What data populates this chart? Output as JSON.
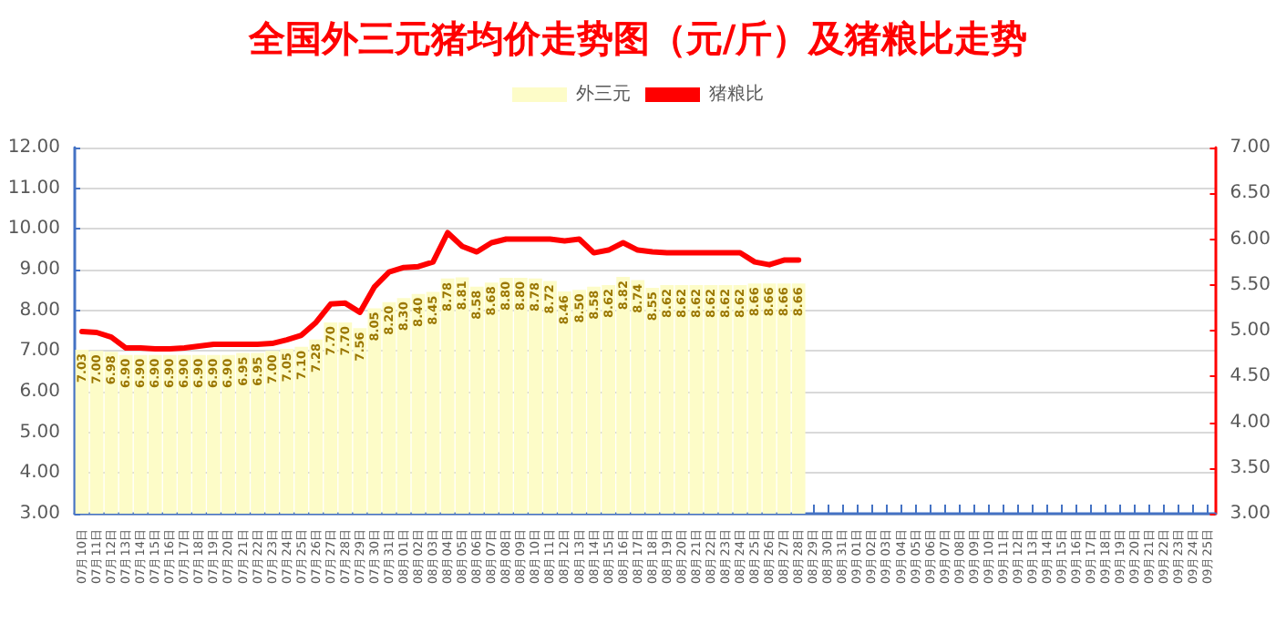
{
  "chart_data": {
    "type": "bar",
    "title": "全国外三元猪均价走势图（元/斤）及猪粮比走势",
    "categories": [
      "07月10日",
      "07月11日",
      "07月12日",
      "07月13日",
      "07月14日",
      "07月15日",
      "07月16日",
      "07月17日",
      "07月18日",
      "07月19日",
      "07月20日",
      "07月21日",
      "07月22日",
      "07月23日",
      "07月24日",
      "07月25日",
      "07月26日",
      "07月27日",
      "07月28日",
      "07月29日",
      "07月30日",
      "07月31日",
      "08月01日",
      "08月02日",
      "08月03日",
      "08月04日",
      "08月05日",
      "08月06日",
      "08月07日",
      "08月08日",
      "08月09日",
      "08月10日",
      "08月11日",
      "08月12日",
      "08月13日",
      "08月14日",
      "08月15日",
      "08月16日",
      "08月17日",
      "08月18日",
      "08月19日",
      "08月20日",
      "08月21日",
      "08月22日",
      "08月23日",
      "08月24日",
      "08月25日",
      "08月26日",
      "08月27日",
      "08月28日",
      "08月29日",
      "08月30日",
      "08月31日",
      "09月01日",
      "09月02日",
      "09月03日",
      "09月04日",
      "09月05日",
      "09月06日",
      "09月07日",
      "09月08日",
      "09月09日",
      "09月10日",
      "09月11日",
      "09月12日",
      "09月13日",
      "09月14日",
      "09月15日",
      "09月16日",
      "09月17日",
      "09月18日",
      "09月19日",
      "09月20日",
      "09月21日",
      "09月22日",
      "09月23日",
      "09月24日",
      "09月25日"
    ],
    "series": [
      {
        "name": "外三元",
        "axis": "y",
        "color": "#fdfcc8",
        "values": [
          7.03,
          7.0,
          6.98,
          6.9,
          6.9,
          6.9,
          6.9,
          6.9,
          6.9,
          6.9,
          6.9,
          6.95,
          6.95,
          7.0,
          7.05,
          7.1,
          7.28,
          7.7,
          7.7,
          7.56,
          8.05,
          8.2,
          8.3,
          8.4,
          8.45,
          8.78,
          8.81,
          8.58,
          8.68,
          8.8,
          8.8,
          8.78,
          8.72,
          8.46,
          8.5,
          8.58,
          8.62,
          8.82,
          8.74,
          8.55,
          8.62,
          8.62,
          8.62,
          8.62,
          8.62,
          8.62,
          8.66,
          8.66,
          8.66,
          8.66,
          null,
          null,
          null,
          null,
          null,
          null,
          null,
          null,
          null,
          null,
          null,
          null,
          null,
          null,
          null,
          null,
          null,
          null,
          null,
          null,
          null,
          null,
          null,
          null,
          null,
          null,
          null,
          null
        ],
        "value_labels": [
          "7.03",
          "7.00",
          "6.98",
          "6.90",
          "6.90",
          "6.90",
          "6.90",
          "6.90",
          "6.90",
          "6.90",
          "6.90",
          "6.95",
          "6.95",
          "7.00",
          "7.05",
          "7.10",
          "7.28",
          "7.70",
          "7.70",
          "7.56",
          "8.05",
          "8.20",
          "8.30",
          "8.40",
          "8.45",
          "8.78",
          "8.81",
          "8.58",
          "8.68",
          "8.80",
          "8.80",
          "8.78",
          "8.72",
          "8.46",
          "8.50",
          "8.58",
          "8.62",
          "8.82",
          "8.74",
          "8.55",
          "8.62",
          "8.62",
          "8.62",
          "8.62",
          "8.62",
          "8.62",
          "8.66",
          "8.66",
          "8.66",
          "8.66",
          null,
          null,
          null,
          null,
          null,
          null,
          null,
          null,
          null,
          null,
          null,
          null,
          null,
          null,
          null,
          null,
          null,
          null,
          null,
          null,
          null,
          null,
          null,
          null,
          null,
          null,
          null,
          null
        ]
      },
      {
        "name": "猪粮比",
        "type": "line",
        "axis": "y2",
        "color": "#ff0000",
        "values": [
          4.99,
          4.98,
          4.93,
          4.81,
          4.81,
          4.8,
          4.8,
          4.81,
          4.83,
          4.85,
          4.85,
          4.85,
          4.85,
          4.86,
          4.9,
          4.95,
          5.09,
          5.29,
          5.3,
          5.2,
          5.48,
          5.64,
          5.69,
          5.7,
          5.75,
          6.07,
          5.92,
          5.86,
          5.96,
          6.0,
          6.0,
          6.0,
          6.0,
          5.98,
          6.0,
          5.85,
          5.88,
          5.96,
          5.88,
          5.86,
          5.85,
          5.85,
          5.85,
          5.85,
          5.85,
          5.85,
          5.75,
          5.72,
          5.77,
          5.77,
          null,
          null,
          null,
          null,
          null,
          null,
          null,
          null,
          null,
          null,
          null,
          null,
          null,
          null,
          null,
          null,
          null,
          null,
          null,
          null,
          null,
          null,
          null,
          null,
          null,
          null,
          null,
          null
        ]
      }
    ],
    "ylim": [
      3,
      12
    ],
    "yticks": [
      {
        "value": 3,
        "label": "3.00"
      },
      {
        "value": 4,
        "label": "4.00"
      },
      {
        "value": 5,
        "label": "5.00"
      },
      {
        "value": 6,
        "label": "6.00"
      },
      {
        "value": 7,
        "label": "7.00"
      },
      {
        "value": 8,
        "label": "8.00"
      },
      {
        "value": 9,
        "label": "9.00"
      },
      {
        "value": 10,
        "label": "10.00"
      },
      {
        "value": 11,
        "label": "11.00"
      },
      {
        "value": 12,
        "label": "12.00"
      }
    ],
    "y2lim": [
      3,
      7
    ],
    "y2ticks": [
      {
        "value": 3,
        "label": "3.00"
      },
      {
        "value": 3.5,
        "label": "3.50"
      },
      {
        "value": 4,
        "label": "4.00"
      },
      {
        "value": 4.5,
        "label": "4.50"
      },
      {
        "value": 5,
        "label": "5.00"
      },
      {
        "value": 5.5,
        "label": "5.50"
      },
      {
        "value": 6,
        "label": "6.00"
      },
      {
        "value": 6.5,
        "label": "6.50"
      },
      {
        "value": 7,
        "label": "7.00"
      }
    ],
    "grid": "y",
    "legend": "top",
    "marker": "none",
    "line_style": "solid"
  }
}
